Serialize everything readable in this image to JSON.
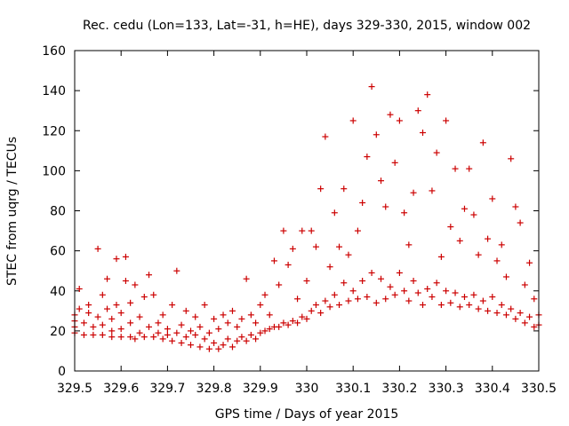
{
  "chart_data": {
    "type": "scatter",
    "title": "Rec. cedu (Lon=133, Lat=-31, h=HE), days 329-330, 2015, window 002",
    "xlabel": "GPS time / Days of year 2015",
    "ylabel": "STEC from uqrg / TECUs",
    "xlim": [
      329.5,
      330.5
    ],
    "ylim": [
      0,
      160
    ],
    "xticks": [
      329.5,
      329.6,
      329.7,
      329.8,
      329.9,
      330,
      330.1,
      330.2,
      330.3,
      330.4,
      330.5
    ],
    "xtick_labels": [
      "329.5",
      "329.6",
      "329.7",
      "329.8",
      "329.9",
      "330",
      "330.1",
      "330.2",
      "330.3",
      "330.4",
      "330.5"
    ],
    "yticks": [
      0,
      20,
      40,
      60,
      80,
      100,
      120,
      140,
      160
    ],
    "ytick_labels": [
      "0",
      "20",
      "40",
      "60",
      "80",
      "100",
      "120",
      "140",
      "160"
    ],
    "marker": "+",
    "color": "#cc0000",
    "grid": false,
    "series": [
      {
        "name": "STEC",
        "points": [
          [
            329.5,
            25
          ],
          [
            329.5,
            28
          ],
          [
            329.5,
            22
          ],
          [
            329.5,
            19
          ],
          [
            329.51,
            31
          ],
          [
            329.51,
            41
          ],
          [
            329.52,
            18
          ],
          [
            329.52,
            24
          ],
          [
            329.53,
            29
          ],
          [
            329.53,
            33
          ],
          [
            329.54,
            18
          ],
          [
            329.54,
            22
          ],
          [
            329.55,
            27
          ],
          [
            329.55,
            61
          ],
          [
            329.56,
            18
          ],
          [
            329.56,
            23
          ],
          [
            329.56,
            38
          ],
          [
            329.57,
            31
          ],
          [
            329.57,
            46
          ],
          [
            329.58,
            17
          ],
          [
            329.58,
            20
          ],
          [
            329.58,
            26
          ],
          [
            329.59,
            33
          ],
          [
            329.59,
            56
          ],
          [
            329.6,
            17
          ],
          [
            329.6,
            21
          ],
          [
            329.6,
            29
          ],
          [
            329.61,
            45
          ],
          [
            329.61,
            57
          ],
          [
            329.62,
            17
          ],
          [
            329.62,
            24
          ],
          [
            329.62,
            34
          ],
          [
            329.63,
            16
          ],
          [
            329.63,
            43
          ],
          [
            329.64,
            19
          ],
          [
            329.64,
            27
          ],
          [
            329.65,
            17
          ],
          [
            329.65,
            37
          ],
          [
            329.66,
            22
          ],
          [
            329.66,
            48
          ],
          [
            329.67,
            17
          ],
          [
            329.67,
            38
          ],
          [
            329.68,
            19
          ],
          [
            329.68,
            24
          ],
          [
            329.69,
            16
          ],
          [
            329.69,
            28
          ],
          [
            329.7,
            18
          ],
          [
            329.7,
            21
          ],
          [
            329.71,
            15
          ],
          [
            329.71,
            33
          ],
          [
            329.72,
            19
          ],
          [
            329.72,
            50
          ],
          [
            329.73,
            14
          ],
          [
            329.73,
            23
          ],
          [
            329.74,
            17
          ],
          [
            329.74,
            30
          ],
          [
            329.75,
            13
          ],
          [
            329.75,
            20
          ],
          [
            329.76,
            18
          ],
          [
            329.76,
            27
          ],
          [
            329.77,
            12
          ],
          [
            329.77,
            22
          ],
          [
            329.78,
            16
          ],
          [
            329.78,
            33
          ],
          [
            329.79,
            11
          ],
          [
            329.79,
            19
          ],
          [
            329.8,
            14
          ],
          [
            329.8,
            26
          ],
          [
            329.81,
            11
          ],
          [
            329.81,
            21
          ],
          [
            329.82,
            13
          ],
          [
            329.82,
            28
          ],
          [
            329.83,
            16
          ],
          [
            329.83,
            24
          ],
          [
            329.84,
            12
          ],
          [
            329.84,
            30
          ],
          [
            329.85,
            15
          ],
          [
            329.85,
            22
          ],
          [
            329.86,
            17
          ],
          [
            329.86,
            26
          ],
          [
            329.87,
            15
          ],
          [
            329.87,
            46
          ],
          [
            329.88,
            18
          ],
          [
            329.88,
            28
          ],
          [
            329.89,
            16
          ],
          [
            329.89,
            24
          ],
          [
            329.9,
            19
          ],
          [
            329.9,
            33
          ],
          [
            329.91,
            20
          ],
          [
            329.91,
            38
          ],
          [
            329.92,
            21
          ],
          [
            329.92,
            28
          ],
          [
            329.93,
            22
          ],
          [
            329.93,
            55
          ],
          [
            329.94,
            22
          ],
          [
            329.94,
            43
          ],
          [
            329.95,
            24
          ],
          [
            329.95,
            70
          ],
          [
            329.96,
            23
          ],
          [
            329.96,
            53
          ],
          [
            329.97,
            25
          ],
          [
            329.97,
            61
          ],
          [
            329.98,
            24
          ],
          [
            329.98,
            36
          ],
          [
            329.99,
            27
          ],
          [
            329.99,
            70
          ],
          [
            330.0,
            26
          ],
          [
            330.0,
            45
          ],
          [
            330.01,
            30
          ],
          [
            330.01,
            70
          ],
          [
            330.02,
            33
          ],
          [
            330.02,
            62
          ],
          [
            330.03,
            29
          ],
          [
            330.03,
            91
          ],
          [
            330.04,
            35
          ],
          [
            330.04,
            117
          ],
          [
            330.05,
            32
          ],
          [
            330.05,
            52
          ],
          [
            330.06,
            38
          ],
          [
            330.06,
            79
          ],
          [
            330.07,
            33
          ],
          [
            330.07,
            62
          ],
          [
            330.08,
            44
          ],
          [
            330.08,
            91
          ],
          [
            330.09,
            35
          ],
          [
            330.09,
            58
          ],
          [
            330.1,
            40
          ],
          [
            330.1,
            125
          ],
          [
            330.11,
            36
          ],
          [
            330.11,
            70
          ],
          [
            330.12,
            45
          ],
          [
            330.12,
            84
          ],
          [
            330.13,
            37
          ],
          [
            330.13,
            107
          ],
          [
            330.14,
            49
          ],
          [
            330.14,
            142
          ],
          [
            330.15,
            34
          ],
          [
            330.15,
            118
          ],
          [
            330.16,
            46
          ],
          [
            330.16,
            95
          ],
          [
            330.17,
            36
          ],
          [
            330.17,
            82
          ],
          [
            330.18,
            42
          ],
          [
            330.18,
            128
          ],
          [
            330.19,
            38
          ],
          [
            330.19,
            104
          ],
          [
            330.2,
            49
          ],
          [
            330.2,
            125
          ],
          [
            330.21,
            40
          ],
          [
            330.21,
            79
          ],
          [
            330.22,
            35
          ],
          [
            330.22,
            63
          ],
          [
            330.23,
            45
          ],
          [
            330.23,
            89
          ],
          [
            330.24,
            39
          ],
          [
            330.24,
            130
          ],
          [
            330.25,
            33
          ],
          [
            330.25,
            119
          ],
          [
            330.26,
            41
          ],
          [
            330.26,
            138
          ],
          [
            330.27,
            37
          ],
          [
            330.27,
            90
          ],
          [
            330.28,
            44
          ],
          [
            330.28,
            109
          ],
          [
            330.29,
            33
          ],
          [
            330.29,
            57
          ],
          [
            330.3,
            40
          ],
          [
            330.3,
            125
          ],
          [
            330.31,
            34
          ],
          [
            330.31,
            72
          ],
          [
            330.32,
            39
          ],
          [
            330.32,
            101
          ],
          [
            330.33,
            32
          ],
          [
            330.33,
            65
          ],
          [
            330.34,
            37
          ],
          [
            330.34,
            81
          ],
          [
            330.35,
            33
          ],
          [
            330.35,
            101
          ],
          [
            330.36,
            38
          ],
          [
            330.36,
            78
          ],
          [
            330.37,
            31
          ],
          [
            330.37,
            58
          ],
          [
            330.38,
            35
          ],
          [
            330.38,
            114
          ],
          [
            330.39,
            30
          ],
          [
            330.39,
            66
          ],
          [
            330.4,
            37
          ],
          [
            330.4,
            86
          ],
          [
            330.41,
            29
          ],
          [
            330.41,
            55
          ],
          [
            330.42,
            33
          ],
          [
            330.42,
            63
          ],
          [
            330.43,
            28
          ],
          [
            330.43,
            47
          ],
          [
            330.44,
            31
          ],
          [
            330.44,
            106
          ],
          [
            330.45,
            26
          ],
          [
            330.45,
            82
          ],
          [
            330.46,
            29
          ],
          [
            330.46,
            74
          ],
          [
            330.47,
            24
          ],
          [
            330.47,
            43
          ],
          [
            330.48,
            27
          ],
          [
            330.48,
            54
          ],
          [
            330.49,
            22
          ],
          [
            330.49,
            36
          ],
          [
            330.5,
            23
          ],
          [
            330.5,
            28
          ]
        ]
      }
    ]
  }
}
